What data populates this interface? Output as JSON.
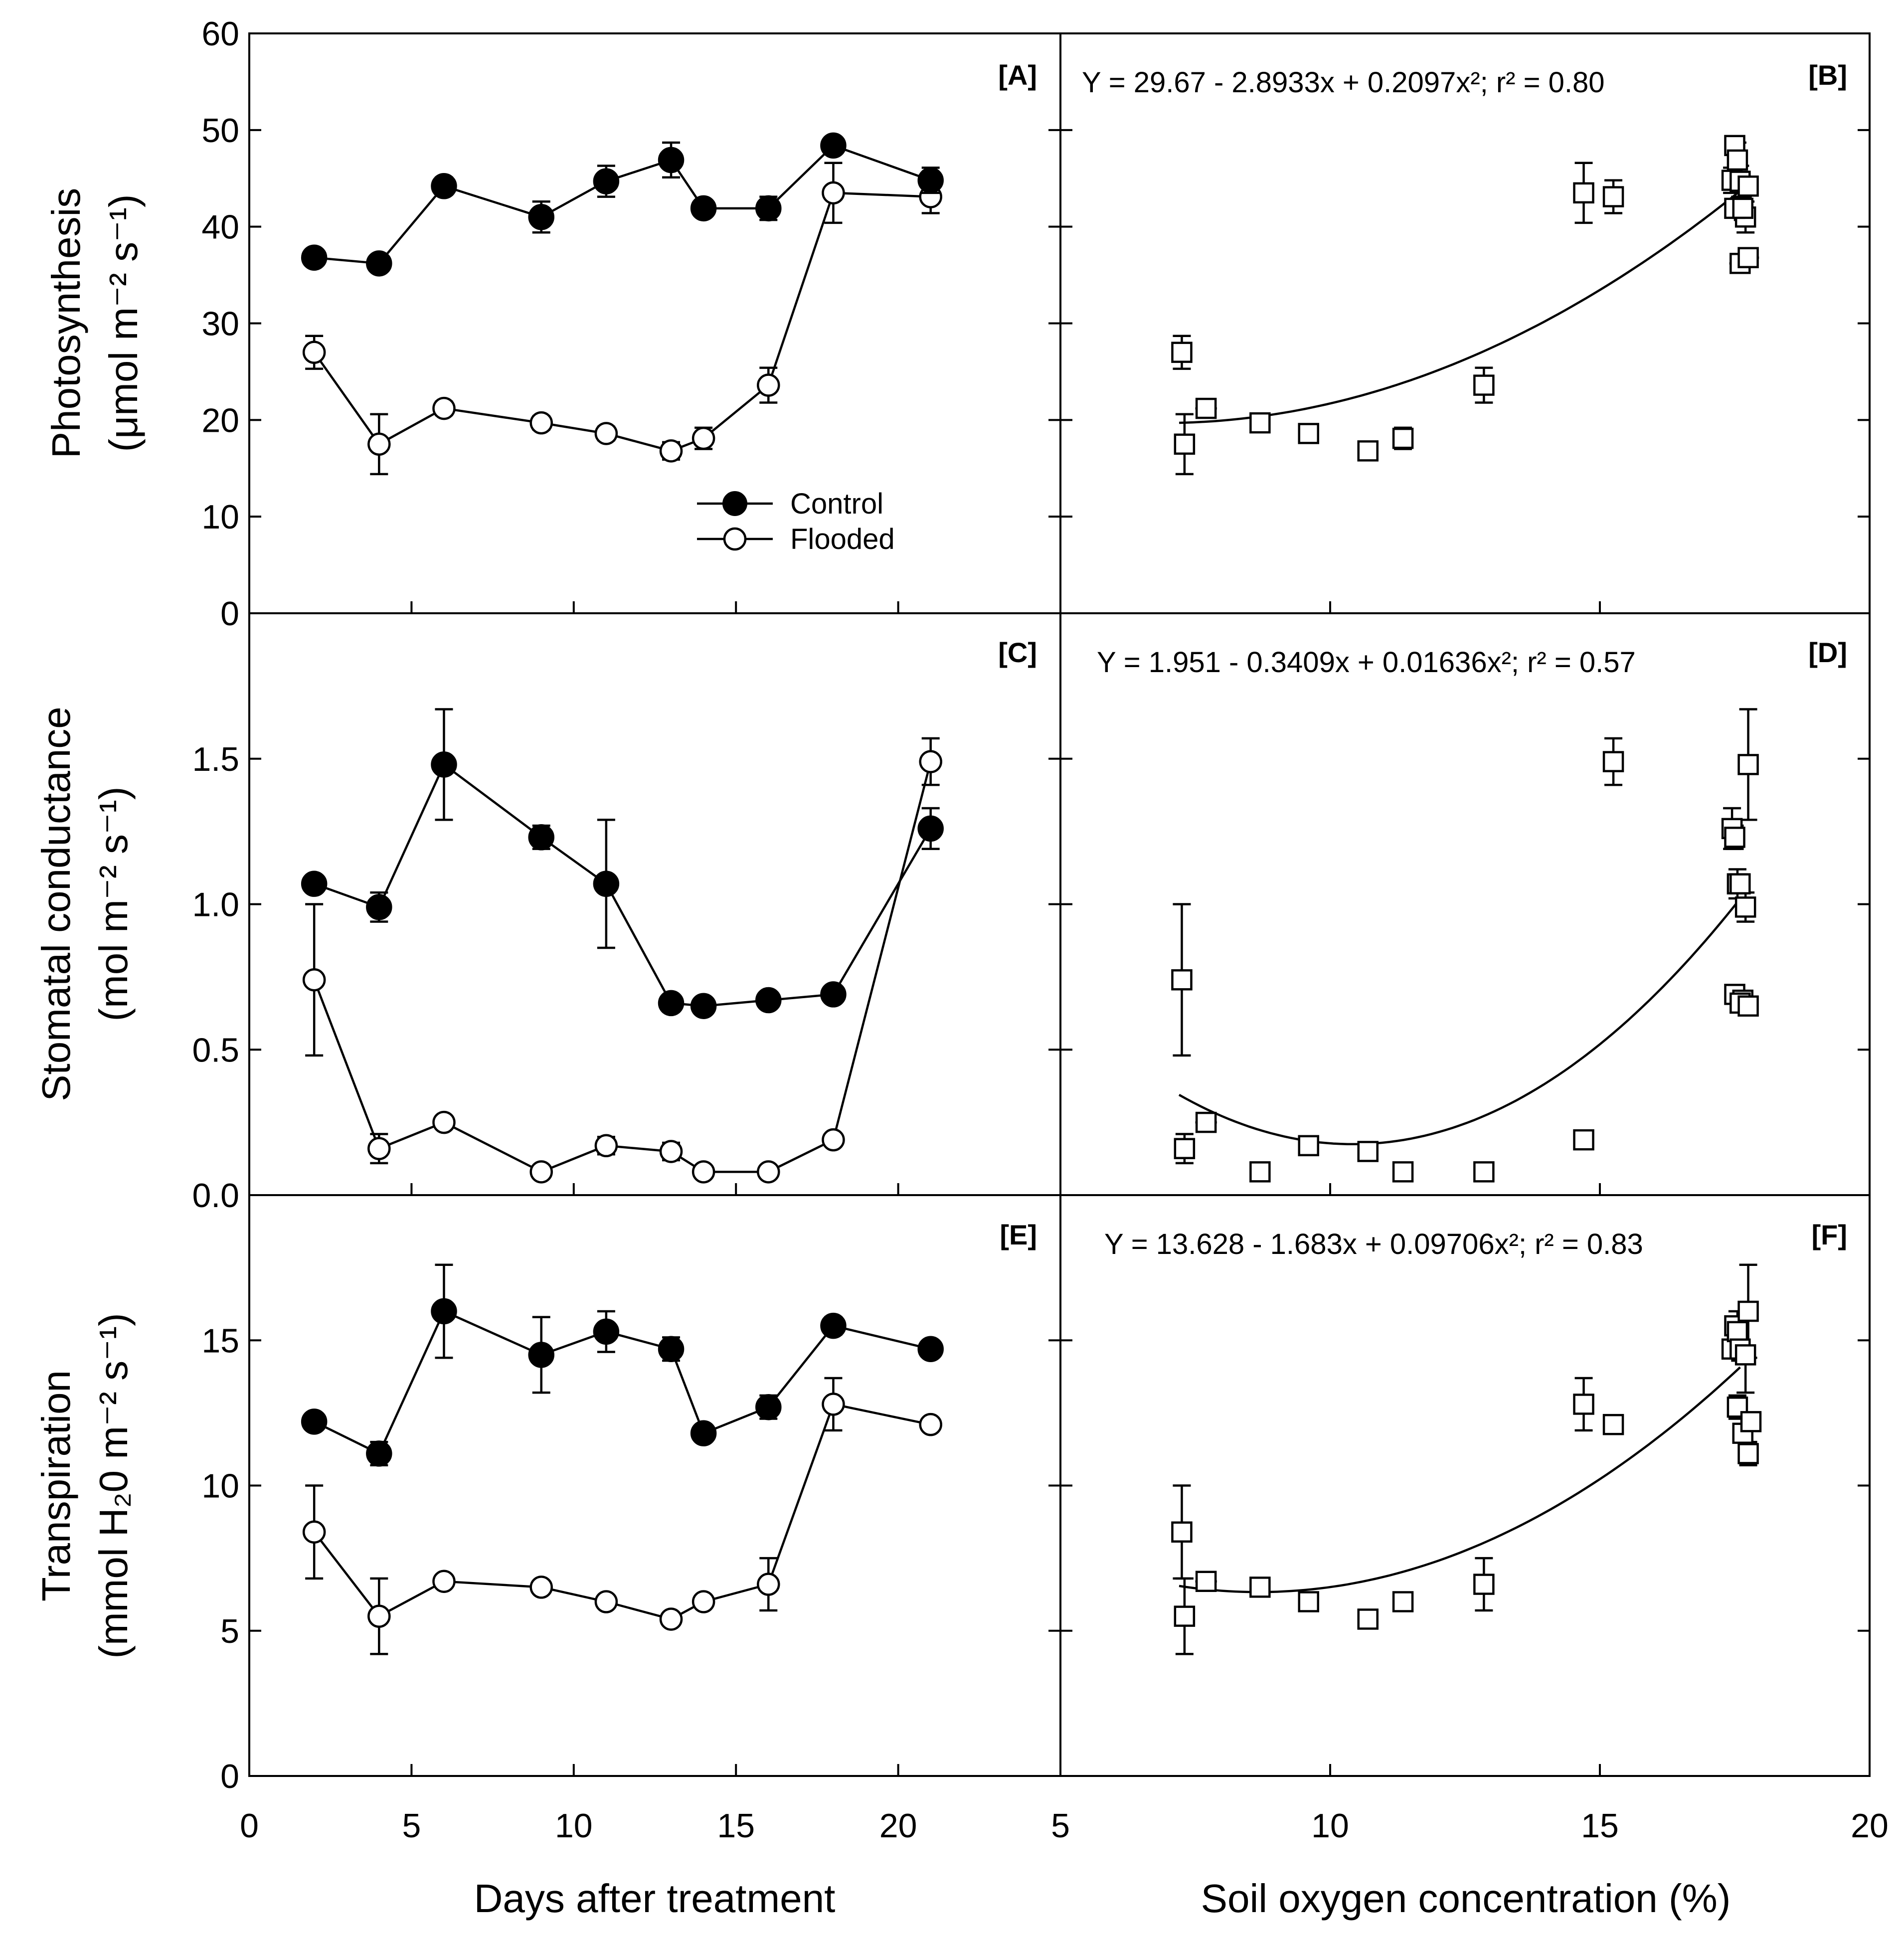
{
  "chart_data": [
    {
      "panel": "[A]",
      "type": "line",
      "ylabel_line1": "Photosynthesis",
      "ylabel_line2": "(μmol m⁻² s⁻¹)",
      "xlim": [
        0,
        25
      ],
      "ylim": [
        0,
        60
      ],
      "yticks": [
        0,
        10,
        20,
        30,
        40,
        50,
        60
      ],
      "series": [
        {
          "name": "Control",
          "marker": "filled-circle",
          "x": [
            2,
            4,
            6,
            9,
            11,
            13,
            14,
            16,
            18,
            21
          ],
          "y": [
            36.8,
            36.2,
            44.2,
            41.0,
            44.7,
            46.9,
            41.9,
            41.9,
            48.4,
            44.8
          ],
          "err": [
            0.6,
            0.8,
            0.9,
            1.6,
            1.6,
            1.8,
            0.6,
            1.2,
            0.8,
            1.3
          ]
        },
        {
          "name": "Flooded",
          "marker": "open-circle",
          "x": [
            2,
            4,
            6,
            9,
            11,
            13,
            14,
            16,
            18,
            21
          ],
          "y": [
            27.0,
            17.5,
            21.2,
            19.7,
            18.6,
            16.8,
            18.1,
            23.6,
            43.5,
            43.1
          ],
          "err": [
            1.7,
            3.1,
            0.7,
            0.7,
            0.7,
            0.9,
            1.1,
            1.8,
            3.1,
            1.7
          ]
        }
      ]
    },
    {
      "panel": "[B]",
      "type": "scatter",
      "equation": "Y = 29.67 - 2.8933x + 0.2097x²; r² = 0.80",
      "xlim": [
        5,
        20
      ],
      "ylim": [
        0,
        60
      ],
      "fit": {
        "a": 29.67,
        "b": -2.8933,
        "c": 0.2097,
        "x_from": 7.2,
        "x_to": 17.6
      },
      "points": {
        "x": [
          7.25,
          7.3,
          7.7,
          8.7,
          9.6,
          10.7,
          11.35,
          12.85,
          14.7,
          15.25,
          17.45,
          17.5,
          17.55,
          17.6,
          17.7,
          17.75,
          17.5,
          17.65,
          17.6,
          17.75
        ],
        "y": [
          27.0,
          17.5,
          21.2,
          19.7,
          18.6,
          16.8,
          18.1,
          23.6,
          43.5,
          43.1,
          44.8,
          48.4,
          46.9,
          44.7,
          41.0,
          44.2,
          41.9,
          41.9,
          36.2,
          36.8
        ],
        "err": [
          1.7,
          3.1,
          0.7,
          0.7,
          0.7,
          0.9,
          1.1,
          1.8,
          3.1,
          1.7,
          1.3,
          0.8,
          1.8,
          1.6,
          1.6,
          0.9,
          0.6,
          1.2,
          0.8,
          0.6
        ],
        "xerr": [
          0,
          0,
          0.2,
          0.15,
          0.15,
          0.15,
          0.15,
          0.15,
          0,
          0,
          0.1,
          0.1,
          0.1,
          0.1,
          0.15,
          0.15,
          0.15,
          0.15,
          0.2,
          0.2
        ]
      }
    },
    {
      "panel": "[C]",
      "type": "line",
      "ylabel_line1": "Stomatal conductance",
      "ylabel_line2": "(mol m⁻² s⁻¹)",
      "xlim": [
        0,
        25
      ],
      "ylim": [
        0,
        2.0
      ],
      "yticks": [
        0.0,
        0.5,
        1.0,
        1.5
      ],
      "ytick_labels": [
        "0.0",
        "0.5",
        "1.0",
        "1.5"
      ],
      "series": [
        {
          "name": "Control",
          "marker": "filled-circle",
          "x": [
            2,
            4,
            6,
            9,
            11,
            13,
            14,
            16,
            18,
            21
          ],
          "y": [
            1.07,
            0.99,
            1.48,
            1.23,
            1.07,
            0.66,
            0.65,
            0.67,
            0.69,
            1.26
          ],
          "err": [
            0.02,
            0.05,
            0.19,
            0.04,
            0.22,
            0.02,
            0.02,
            0.01,
            0.02,
            0.07
          ]
        },
        {
          "name": "Flooded",
          "marker": "open-circle",
          "x": [
            2,
            4,
            6,
            9,
            11,
            13,
            14,
            16,
            18,
            21
          ],
          "y": [
            0.74,
            0.16,
            0.25,
            0.08,
            0.17,
            0.15,
            0.08,
            0.08,
            0.19,
            1.49
          ],
          "err": [
            0.26,
            0.05,
            0.02,
            0.01,
            0.03,
            0.03,
            0.01,
            0.01,
            0.02,
            0.08
          ]
        }
      ]
    },
    {
      "panel": "[D]",
      "type": "scatter",
      "equation": "Y = 1.951 - 0.3409x + 0.01636x²; r² = 0.57",
      "xlim": [
        5,
        20
      ],
      "ylim": [
        0,
        2.0
      ],
      "fit": {
        "a": 1.951,
        "b": -0.3409,
        "c": 0.01636,
        "x_from": 7.2,
        "x_to": 17.6
      },
      "points": {
        "x": [
          7.25,
          7.3,
          7.7,
          8.7,
          9.6,
          10.7,
          11.35,
          12.85,
          14.7,
          15.25,
          17.45,
          17.5,
          17.55,
          17.6,
          17.7,
          17.75,
          17.5,
          17.65,
          17.6,
          17.75
        ],
        "y": [
          0.74,
          0.16,
          0.25,
          0.08,
          0.17,
          0.15,
          0.08,
          0.08,
          0.19,
          1.49,
          1.26,
          1.23,
          1.07,
          1.07,
          0.99,
          1.48,
          0.69,
          0.67,
          0.66,
          0.65
        ],
        "err": [
          0.26,
          0.05,
          0.02,
          0.01,
          0.03,
          0.03,
          0.01,
          0.01,
          0.02,
          0.08,
          0.07,
          0.04,
          0.05,
          0.02,
          0.05,
          0.19,
          0.02,
          0.01,
          0.02,
          0.02
        ],
        "xerr": [
          0,
          0,
          0.2,
          0.15,
          0.15,
          0.15,
          0.15,
          0.15,
          0,
          0,
          0.1,
          0.1,
          0.1,
          0.1,
          0.15,
          0.15,
          0.1,
          0.1,
          0.1,
          0.1
        ]
      }
    },
    {
      "panel": "[E]",
      "type": "line",
      "ylabel_line1": "Transpiration",
      "ylabel_line2": "(mmol H₂0 m⁻² s⁻¹)",
      "xlabel": "Days after treatment",
      "xlim": [
        0,
        25
      ],
      "ylim": [
        0,
        20
      ],
      "yticks": [
        0,
        5,
        10,
        15
      ],
      "xticks": [
        0,
        5,
        10,
        15,
        20
      ],
      "series": [
        {
          "name": "Control",
          "marker": "filled-circle",
          "x": [
            2,
            4,
            6,
            9,
            11,
            13,
            14,
            16,
            18,
            21
          ],
          "y": [
            12.2,
            11.1,
            16.0,
            14.5,
            15.3,
            14.7,
            11.8,
            12.7,
            15.5,
            14.7
          ],
          "err": [
            0.2,
            0.4,
            1.6,
            1.3,
            0.7,
            0.4,
            0.2,
            0.4,
            0.3,
            0.2
          ]
        },
        {
          "name": "Flooded",
          "marker": "open-circle",
          "x": [
            2,
            4,
            6,
            9,
            11,
            13,
            14,
            16,
            18,
            21
          ],
          "y": [
            8.4,
            5.5,
            6.7,
            6.5,
            6.0,
            5.4,
            6.0,
            6.6,
            12.8,
            12.1
          ],
          "err": [
            1.6,
            1.3,
            0.2,
            0.2,
            0.2,
            0.2,
            0.2,
            0.9,
            0.9,
            0.2
          ]
        }
      ]
    },
    {
      "panel": "[F]",
      "type": "scatter",
      "equation": "Y = 13.628 - 1.683x + 0.09706x²; r² = 0.83",
      "xlabel": "Soil oxygen concentration (%)",
      "xlim": [
        5,
        20
      ],
      "ylim": [
        0,
        20
      ],
      "xticks": [
        5,
        10,
        15,
        20
      ],
      "fit": {
        "a": 13.628,
        "b": -1.683,
        "c": 0.09706,
        "x_from": 7.2,
        "x_to": 17.6
      },
      "points": {
        "x": [
          7.25,
          7.3,
          7.7,
          8.7,
          9.6,
          10.7,
          11.35,
          12.85,
          14.7,
          15.25,
          17.45,
          17.5,
          17.55,
          17.6,
          17.7,
          17.75,
          17.55,
          17.65,
          17.75,
          17.8
        ],
        "y": [
          8.4,
          5.5,
          6.7,
          6.5,
          6.0,
          5.4,
          6.0,
          6.6,
          12.8,
          12.1,
          14.7,
          15.5,
          15.3,
          14.7,
          14.5,
          16.0,
          12.7,
          11.8,
          11.1,
          12.2
        ],
        "err": [
          1.6,
          1.3,
          0.2,
          0.2,
          0.2,
          0.2,
          0.2,
          0.9,
          0.9,
          0.2,
          0.2,
          0.3,
          0.7,
          0.4,
          1.3,
          1.6,
          0.4,
          0.2,
          0.4,
          0.2
        ],
        "xerr": [
          0,
          0,
          0.2,
          0.15,
          0.15,
          0.15,
          0.15,
          0.15,
          0,
          0.1,
          0.1,
          0.1,
          0.1,
          0.1,
          0.1,
          0.1,
          0.1,
          0.1,
          0.1,
          0.1
        ]
      }
    }
  ],
  "legend": {
    "control": "Control",
    "flooded": "Flooded"
  }
}
